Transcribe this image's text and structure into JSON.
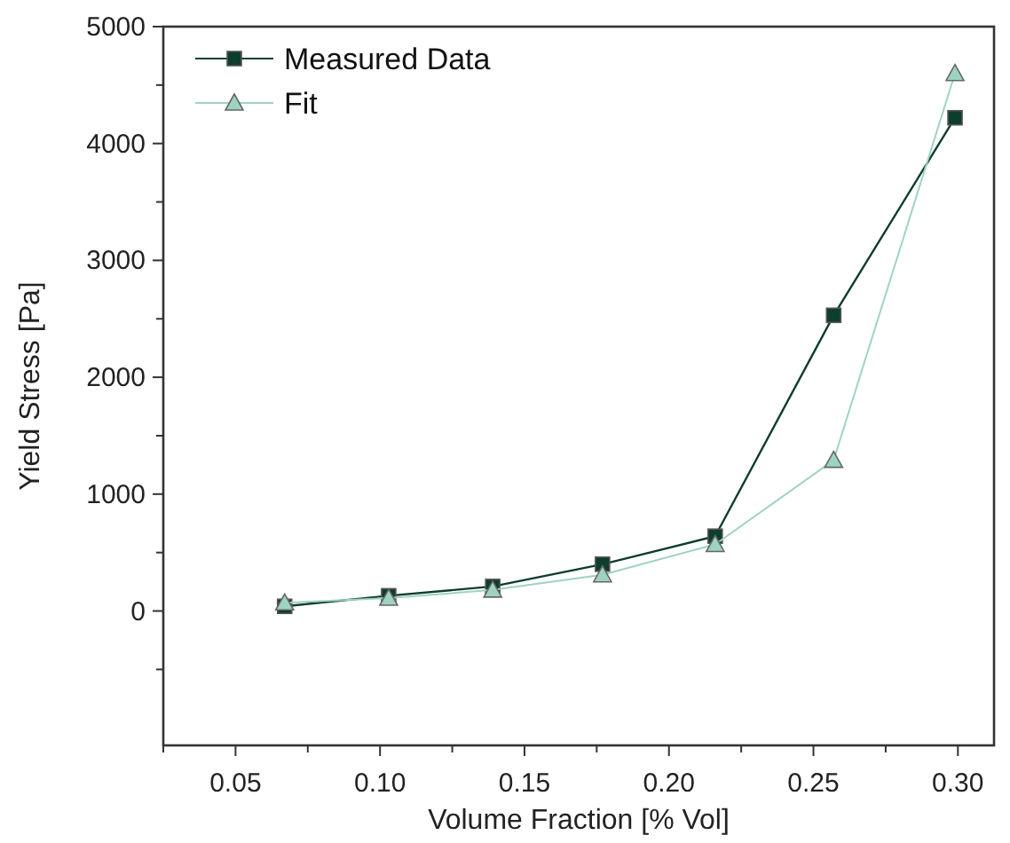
{
  "chart_data": {
    "type": "line",
    "xlabel": "Volume Fraction [% Vol]",
    "ylabel": "Yield Stress [Pa]",
    "x": [
      0.067,
      0.103,
      0.139,
      0.177,
      0.216,
      0.257,
      0.299
    ],
    "xlim": [
      0.025,
      0.3125
    ],
    "xticks": [
      {
        "value": 0.05,
        "label": "0.05"
      },
      {
        "value": 0.1,
        "label": "0.10"
      },
      {
        "value": 0.15,
        "label": "0.15"
      },
      {
        "value": 0.2,
        "label": "0.20"
      },
      {
        "value": 0.25,
        "label": "0.25"
      },
      {
        "value": 0.3,
        "label": "0.30"
      }
    ],
    "ylim": [
      -1150,
      5000
    ],
    "yticks": [
      0,
      1000,
      2000,
      3000,
      4000,
      5000
    ],
    "series": [
      {
        "name": "Measured Data",
        "color": "#0d3d2e",
        "marker": "square",
        "values": [
          40,
          130,
          210,
          400,
          640,
          2530,
          4220
        ]
      },
      {
        "name": "Fit",
        "color": "#9fd3c1",
        "marker": "triangle",
        "values": [
          70,
          110,
          180,
          310,
          570,
          1290,
          4600
        ]
      }
    ],
    "legend": "top left",
    "grid": false
  }
}
